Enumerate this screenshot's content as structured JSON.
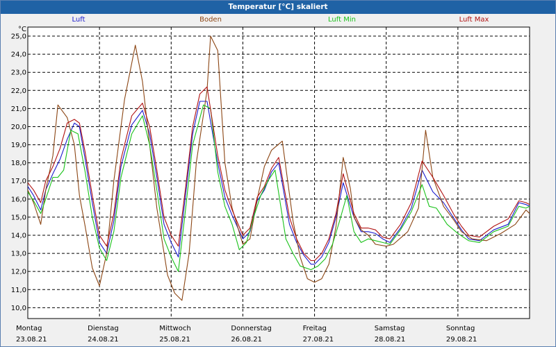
{
  "window": {
    "title": "Temperatur [°C] skaliert"
  },
  "legend": [
    {
      "label": "Luft",
      "color": "#1a1acc"
    },
    {
      "label": "Boden",
      "color": "#8b4513"
    },
    {
      "label": "Luft Min",
      "color": "#19c219"
    },
    {
      "label": "Luft Max",
      "color": "#b01010"
    }
  ],
  "chart_data": {
    "type": "line",
    "title": "Temperatur [°C] skaliert",
    "ylabel": "°C",
    "ylim": [
      9.4,
      25.5
    ],
    "xlim": [
      0,
      7.0
    ],
    "grid": true,
    "y_ticks": [
      "25,0",
      "24,0",
      "23,0",
      "22,0",
      "21,0",
      "20,0",
      "19,0",
      "18,0",
      "17,0",
      "16,0",
      "15,0",
      "14,0",
      "13,0",
      "12,0",
      "11,0",
      "10,0"
    ],
    "x_ticks": [
      {
        "day": "Montag",
        "date": "23.08.21",
        "x": 0
      },
      {
        "day": "Dienstag",
        "date": "24.08.21",
        "x": 1
      },
      {
        "day": "Mittwoch",
        "date": "25.08.21",
        "x": 2
      },
      {
        "day": "Donnerstag",
        "date": "26.08.21",
        "x": 3
      },
      {
        "day": "Freitag",
        "date": "27.08.21",
        "x": 4
      },
      {
        "day": "Samstag",
        "date": "28.08.21",
        "x": 5
      },
      {
        "day": "Sonntag",
        "date": "29.08.21",
        "x": 6
      }
    ],
    "series": [
      {
        "name": "Luft",
        "color": "#1a1acc",
        "x": [
          0,
          0.08,
          0.18,
          0.25,
          0.35,
          0.45,
          0.55,
          0.65,
          0.72,
          0.8,
          0.9,
          1.0,
          1.1,
          1.2,
          1.3,
          1.45,
          1.6,
          1.7,
          1.8,
          1.9,
          2.0,
          2.1,
          2.2,
          2.3,
          2.4,
          2.5,
          2.65,
          2.75,
          2.85,
          3.0,
          3.1,
          3.2,
          3.3,
          3.4,
          3.5,
          3.65,
          3.75,
          3.85,
          3.95,
          4.0,
          4.1,
          4.2,
          4.3,
          4.4,
          4.55,
          4.65,
          4.75,
          4.85,
          4.95,
          5.05,
          5.2,
          5.35,
          5.5,
          5.65,
          5.8,
          5.95,
          6.05,
          6.15,
          6.3,
          6.5,
          6.7,
          6.85,
          6.95,
          7.0
        ],
        "y": [
          16.7,
          16.2,
          15.4,
          16.5,
          17.4,
          18.2,
          19.3,
          20.2,
          20.0,
          18.2,
          15.8,
          13.6,
          13.0,
          14.8,
          17.8,
          20.1,
          20.9,
          19.6,
          17.2,
          14.6,
          13.6,
          12.8,
          16.2,
          19.6,
          21.4,
          21.4,
          18.0,
          16.1,
          15.1,
          13.8,
          14.2,
          15.9,
          16.5,
          17.5,
          18.0,
          14.6,
          13.6,
          12.9,
          12.4,
          12.4,
          12.8,
          13.6,
          15.0,
          16.9,
          15.0,
          14.2,
          14.2,
          14.1,
          13.8,
          13.6,
          14.4,
          15.5,
          17.6,
          16.4,
          15.8,
          14.9,
          14.3,
          13.8,
          13.7,
          14.3,
          14.6,
          15.8,
          15.7,
          15.6
        ]
      },
      {
        "name": "Boden",
        "color": "#8b4513",
        "x": [
          0,
          0.08,
          0.18,
          0.25,
          0.35,
          0.42,
          0.55,
          0.65,
          0.72,
          0.8,
          0.9,
          1.0,
          1.1,
          1.2,
          1.35,
          1.5,
          1.6,
          1.7,
          1.8,
          1.95,
          2.05,
          2.15,
          2.25,
          2.35,
          2.5,
          2.55,
          2.65,
          2.75,
          2.85,
          3.0,
          3.1,
          3.2,
          3.3,
          3.4,
          3.55,
          3.7,
          3.8,
          3.9,
          4.0,
          4.1,
          4.2,
          4.3,
          4.4,
          4.5,
          4.55,
          4.65,
          4.75,
          4.85,
          5.0,
          5.1,
          5.3,
          5.45,
          5.55,
          5.65,
          5.8,
          5.95,
          6.05,
          6.2,
          6.4,
          6.6,
          6.8,
          6.95,
          7.0
        ],
        "y": [
          16.5,
          15.8,
          14.6,
          16.5,
          18.4,
          21.2,
          20.5,
          19.0,
          16.2,
          14.5,
          12.2,
          11.2,
          13.0,
          17.0,
          21.5,
          24.5,
          22.5,
          19.0,
          15.5,
          11.8,
          10.8,
          10.4,
          13.0,
          18.0,
          22.0,
          25.0,
          24.2,
          18.0,
          15.5,
          13.5,
          13.8,
          16.0,
          17.8,
          18.7,
          19.2,
          14.8,
          12.8,
          11.6,
          11.4,
          11.6,
          12.4,
          14.5,
          18.3,
          16.6,
          15.0,
          14.3,
          14.0,
          13.5,
          13.4,
          13.5,
          14.2,
          15.5,
          19.8,
          17.2,
          15.6,
          14.8,
          14.2,
          13.8,
          13.7,
          14.1,
          14.6,
          15.4,
          15.2
        ]
      },
      {
        "name": "Luft Min",
        "color": "#19c219",
        "x": [
          0,
          0.08,
          0.18,
          0.25,
          0.35,
          0.42,
          0.5,
          0.6,
          0.7,
          0.8,
          0.9,
          1.0,
          1.1,
          1.2,
          1.3,
          1.45,
          1.6,
          1.7,
          1.8,
          1.9,
          2.0,
          2.1,
          2.2,
          2.3,
          2.45,
          2.55,
          2.65,
          2.75,
          2.85,
          2.95,
          3.05,
          3.15,
          3.25,
          3.35,
          3.45,
          3.6,
          3.7,
          3.8,
          3.95,
          4.05,
          4.15,
          4.25,
          4.35,
          4.45,
          4.55,
          4.65,
          4.75,
          4.85,
          4.95,
          5.05,
          5.2,
          5.35,
          5.5,
          5.6,
          5.7,
          5.85,
          6.0,
          6.15,
          6.3,
          6.5,
          6.7,
          6.85,
          6.95,
          7.0
        ],
        "y": [
          16.4,
          15.9,
          15.2,
          16.0,
          17.2,
          17.2,
          17.6,
          19.8,
          19.6,
          17.5,
          15.0,
          13.3,
          12.6,
          14.2,
          17.2,
          19.6,
          20.6,
          19.0,
          16.5,
          13.8,
          12.8,
          12.0,
          15.4,
          19.0,
          21.2,
          21.0,
          17.5,
          15.6,
          14.6,
          13.2,
          13.6,
          15.0,
          16.2,
          17.0,
          17.6,
          13.8,
          13.0,
          12.3,
          12.1,
          12.3,
          12.7,
          13.5,
          14.8,
          16.2,
          14.2,
          13.6,
          13.8,
          13.7,
          13.6,
          13.5,
          14.3,
          15.3,
          16.8,
          15.6,
          15.5,
          14.6,
          14.1,
          13.7,
          13.6,
          14.2,
          14.5,
          15.6,
          15.5,
          15.6
        ]
      },
      {
        "name": "Luft Max",
        "color": "#b01010",
        "x": [
          0,
          0.08,
          0.18,
          0.25,
          0.35,
          0.45,
          0.55,
          0.65,
          0.72,
          0.8,
          0.9,
          1.0,
          1.1,
          1.2,
          1.3,
          1.45,
          1.6,
          1.7,
          1.8,
          1.9,
          2.0,
          2.1,
          2.2,
          2.3,
          2.4,
          2.5,
          2.65,
          2.75,
          2.85,
          3.0,
          3.1,
          3.2,
          3.3,
          3.4,
          3.5,
          3.65,
          3.75,
          3.85,
          3.95,
          4.0,
          4.1,
          4.2,
          4.3,
          4.4,
          4.55,
          4.65,
          4.75,
          4.85,
          4.95,
          5.05,
          5.2,
          5.35,
          5.5,
          5.65,
          5.8,
          5.95,
          6.05,
          6.15,
          6.3,
          6.5,
          6.7,
          6.85,
          6.95,
          7.0
        ],
        "y": [
          16.9,
          16.5,
          15.8,
          17.0,
          17.8,
          18.8,
          20.2,
          20.4,
          20.2,
          18.6,
          16.2,
          14.0,
          13.4,
          15.2,
          18.2,
          20.6,
          21.3,
          20.0,
          17.6,
          15.0,
          14.0,
          13.4,
          16.6,
          20.0,
          21.8,
          22.2,
          18.4,
          16.5,
          15.4,
          14.0,
          14.4,
          16.1,
          16.7,
          17.7,
          18.3,
          15.0,
          13.8,
          13.0,
          12.6,
          12.6,
          13.0,
          13.8,
          15.2,
          17.4,
          15.2,
          14.4,
          14.4,
          14.3,
          13.9,
          13.8,
          14.6,
          15.8,
          18.1,
          17.2,
          16.2,
          15.1,
          14.5,
          14.0,
          13.9,
          14.5,
          14.9,
          15.9,
          15.8,
          15.7
        ]
      }
    ]
  }
}
